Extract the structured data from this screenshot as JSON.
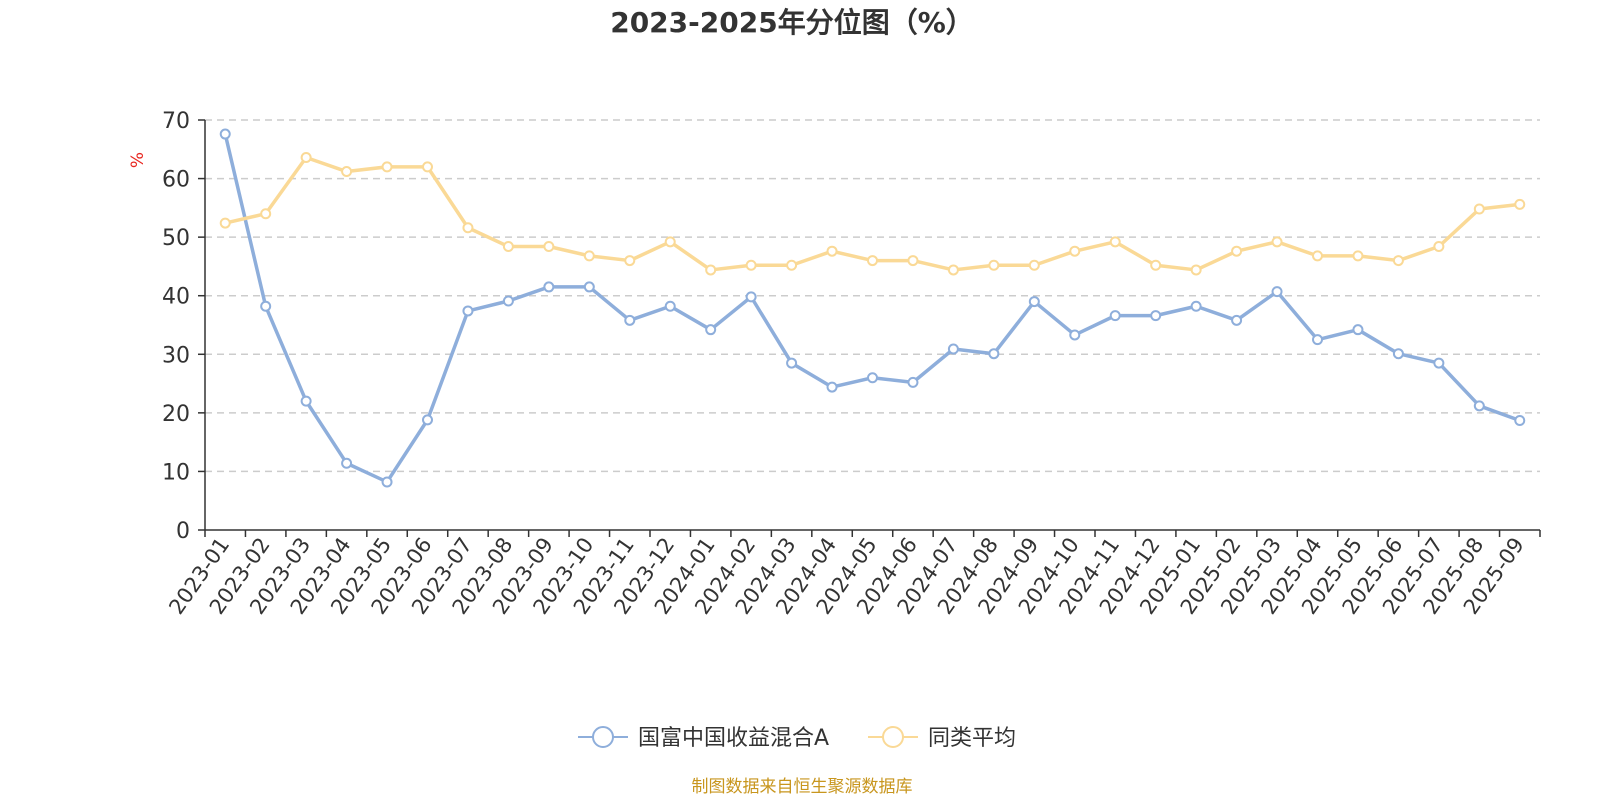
{
  "chart_data": {
    "type": "line",
    "title": "2023-2025年分位图（%）",
    "ylabel": "%",
    "xlabel": "",
    "ylim": [
      0,
      70
    ],
    "yticks": [
      0,
      10,
      20,
      30,
      40,
      50,
      60,
      70
    ],
    "grid": true,
    "legend_position": "bottom-center",
    "categories": [
      "2023-01",
      "2023-02",
      "2023-03",
      "2023-04",
      "2023-05",
      "2023-06",
      "2023-07",
      "2023-08",
      "2023-09",
      "2023-10",
      "2023-11",
      "2023-12",
      "2024-01",
      "2024-02",
      "2024-03",
      "2024-04",
      "2024-05",
      "2024-06",
      "2024-07",
      "2024-08",
      "2024-09",
      "2024-10",
      "2024-11",
      "2024-12",
      "2025-01",
      "2025-02",
      "2025-03",
      "2025-04",
      "2025-05",
      "2025-06",
      "2025-07",
      "2025-08",
      "2025-09"
    ],
    "series": [
      {
        "name": "国富中国收益混合A",
        "color": "#8eaedb",
        "values": [
          67.6,
          38.2,
          22.0,
          11.4,
          8.2,
          18.8,
          37.4,
          39.1,
          41.5,
          41.5,
          35.8,
          38.2,
          34.2,
          39.8,
          28.5,
          24.4,
          26.0,
          25.2,
          30.9,
          30.1,
          39.0,
          33.3,
          36.6,
          36.6,
          38.2,
          35.8,
          40.7,
          32.5,
          34.2,
          30.1,
          28.5,
          21.2,
          18.7
        ]
      },
      {
        "name": "同类平均",
        "color": "#fad996",
        "values": [
          52.4,
          54.0,
          63.6,
          61.2,
          62.0,
          62.0,
          51.6,
          48.4,
          48.4,
          46.8,
          46.0,
          49.2,
          44.4,
          45.2,
          45.2,
          47.6,
          46.0,
          46.0,
          44.4,
          45.2,
          45.2,
          47.6,
          49.2,
          45.2,
          44.4,
          47.6,
          49.2,
          46.8,
          46.8,
          46.0,
          48.4,
          54.8,
          55.6
        ]
      }
    ],
    "source": "制图数据来自恒生聚源数据库",
    "axis_color": "#333333",
    "grid_color": "#cccccc",
    "unit_color": "#e8261f",
    "source_color": "#c8961e"
  }
}
